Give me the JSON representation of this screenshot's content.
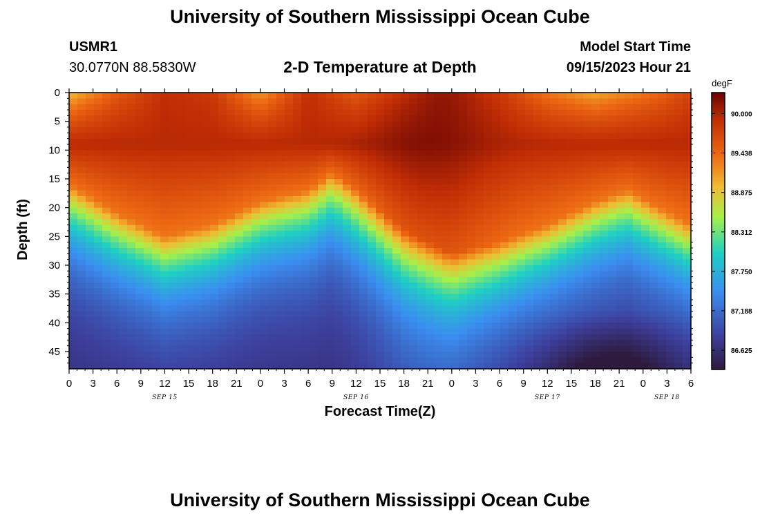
{
  "header": {
    "title": "University of Southern Mississippi Ocean Cube",
    "station_id": "USMR1",
    "coordinates": "30.0770N  88.5830W",
    "subtitle": "2-D Temperature at Depth",
    "model_start_label": "Model Start Time",
    "model_start_value": "09/15/2023 Hour 21"
  },
  "footer": {
    "title": "University of Southern Mississippi Ocean Cube"
  },
  "chart_data": {
    "type": "heatmap",
    "title": "2-D Temperature at Depth",
    "xlabel": "Forecast Time(Z)",
    "ylabel": "Depth (ft)",
    "x_hours_range": [
      0,
      78
    ],
    "ylim": [
      0,
      48
    ],
    "x_tick_step_hours": 3,
    "x_tick_labels": [
      "0",
      "3",
      "6",
      "9",
      "12",
      "15",
      "18",
      "21",
      "0",
      "3",
      "6",
      "9",
      "12",
      "15",
      "18",
      "21",
      "0",
      "3",
      "6",
      "9",
      "12",
      "15",
      "18",
      "21",
      "0",
      "3",
      "6"
    ],
    "y_tick_labels": [
      "0",
      "5",
      "10",
      "15",
      "20",
      "25",
      "30",
      "35",
      "40",
      "45"
    ],
    "date_labels": [
      {
        "label": "SEP 15",
        "hour": 12
      },
      {
        "label": "SEP 16",
        "hour": 36
      },
      {
        "label": "SEP 17",
        "hour": 60
      },
      {
        "label": "SEP 18",
        "hour": 75
      }
    ],
    "colorbar": {
      "units": "degF",
      "min": 86.35,
      "max": 90.3,
      "tick_values": [
        90.0,
        89.438,
        88.875,
        88.312,
        87.75,
        87.188,
        86.625
      ],
      "tick_labels": [
        "90.000",
        "89.438",
        "88.875",
        "88.312",
        "87.750",
        "87.188",
        "86.625"
      ]
    },
    "features": {
      "thermocline_depth_ft_by_hour": [
        [
          0,
          20
        ],
        [
          6,
          25
        ],
        [
          12,
          29
        ],
        [
          18,
          27
        ],
        [
          24,
          23
        ],
        [
          30,
          21
        ],
        [
          33,
          18
        ],
        [
          36,
          21
        ],
        [
          42,
          28
        ],
        [
          48,
          32
        ],
        [
          54,
          30
        ],
        [
          60,
          27
        ],
        [
          66,
          23
        ],
        [
          70,
          21
        ],
        [
          74,
          24
        ],
        [
          78,
          27
        ]
      ],
      "surface_temp_degF_by_hour": [
        [
          0,
          88.85
        ],
        [
          2,
          89.1
        ],
        [
          6,
          89.5
        ],
        [
          12,
          89.9
        ],
        [
          18,
          89.8
        ],
        [
          24,
          89.1
        ],
        [
          30,
          89.9
        ],
        [
          36,
          89.5
        ],
        [
          42,
          89.9
        ],
        [
          46,
          90.1
        ],
        [
          48,
          90.1
        ],
        [
          54,
          89.8
        ],
        [
          60,
          89.3
        ],
        [
          66,
          89.0
        ],
        [
          70,
          89.2
        ],
        [
          74,
          89.4
        ],
        [
          78,
          89.7
        ]
      ]
    }
  }
}
